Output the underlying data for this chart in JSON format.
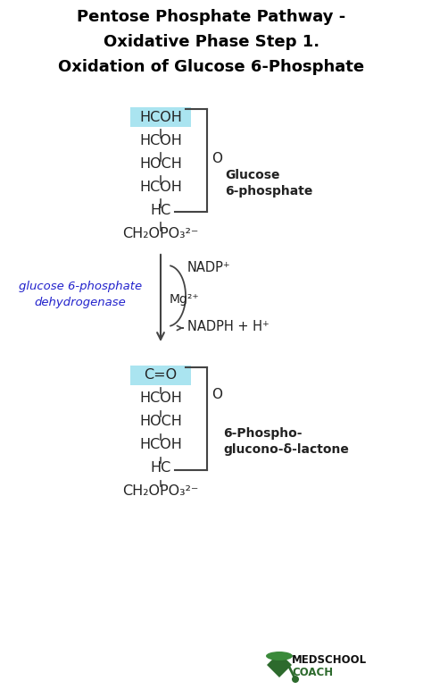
{
  "title_line1": "Pentose Phosphate Pathway -",
  "title_line2": "Oxidative Phase Step 1.",
  "title_line3": "Oxidation of Glucose 6-Phosphate",
  "bg_color": "#ffffff",
  "title_color": "#000000",
  "enzyme_color": "#2222cc",
  "highlight_color": "#aae4f0",
  "mol1_rows": [
    "HCOH",
    "HCOH",
    "HOCH",
    "HCOH",
    "HC",
    "CH₂OPO₃²⁻"
  ],
  "mol2_rows": [
    "C=O",
    "HCOH",
    "HOCH",
    "HCOH",
    "HC",
    "CH₂OPO₃²⁻"
  ],
  "mol1_highlight": 0,
  "mol2_highlight": 0,
  "mol1_label_line1": "Glucose",
  "mol1_label_line2": "6-phosphate",
  "mol2_label_line1": "6-Phospho-",
  "mol2_label_line2": "glucono-δ-lactone",
  "nadp_text": "NADP⁺",
  "nadph_text": "NADPH + H⁺",
  "mg_text": "Mg²⁺",
  "enzyme_line1": "glucose 6-phosphate",
  "enzyme_line2": "dehydrogenase",
  "O_label": "O",
  "line_color": "#444444",
  "text_color": "#222222"
}
